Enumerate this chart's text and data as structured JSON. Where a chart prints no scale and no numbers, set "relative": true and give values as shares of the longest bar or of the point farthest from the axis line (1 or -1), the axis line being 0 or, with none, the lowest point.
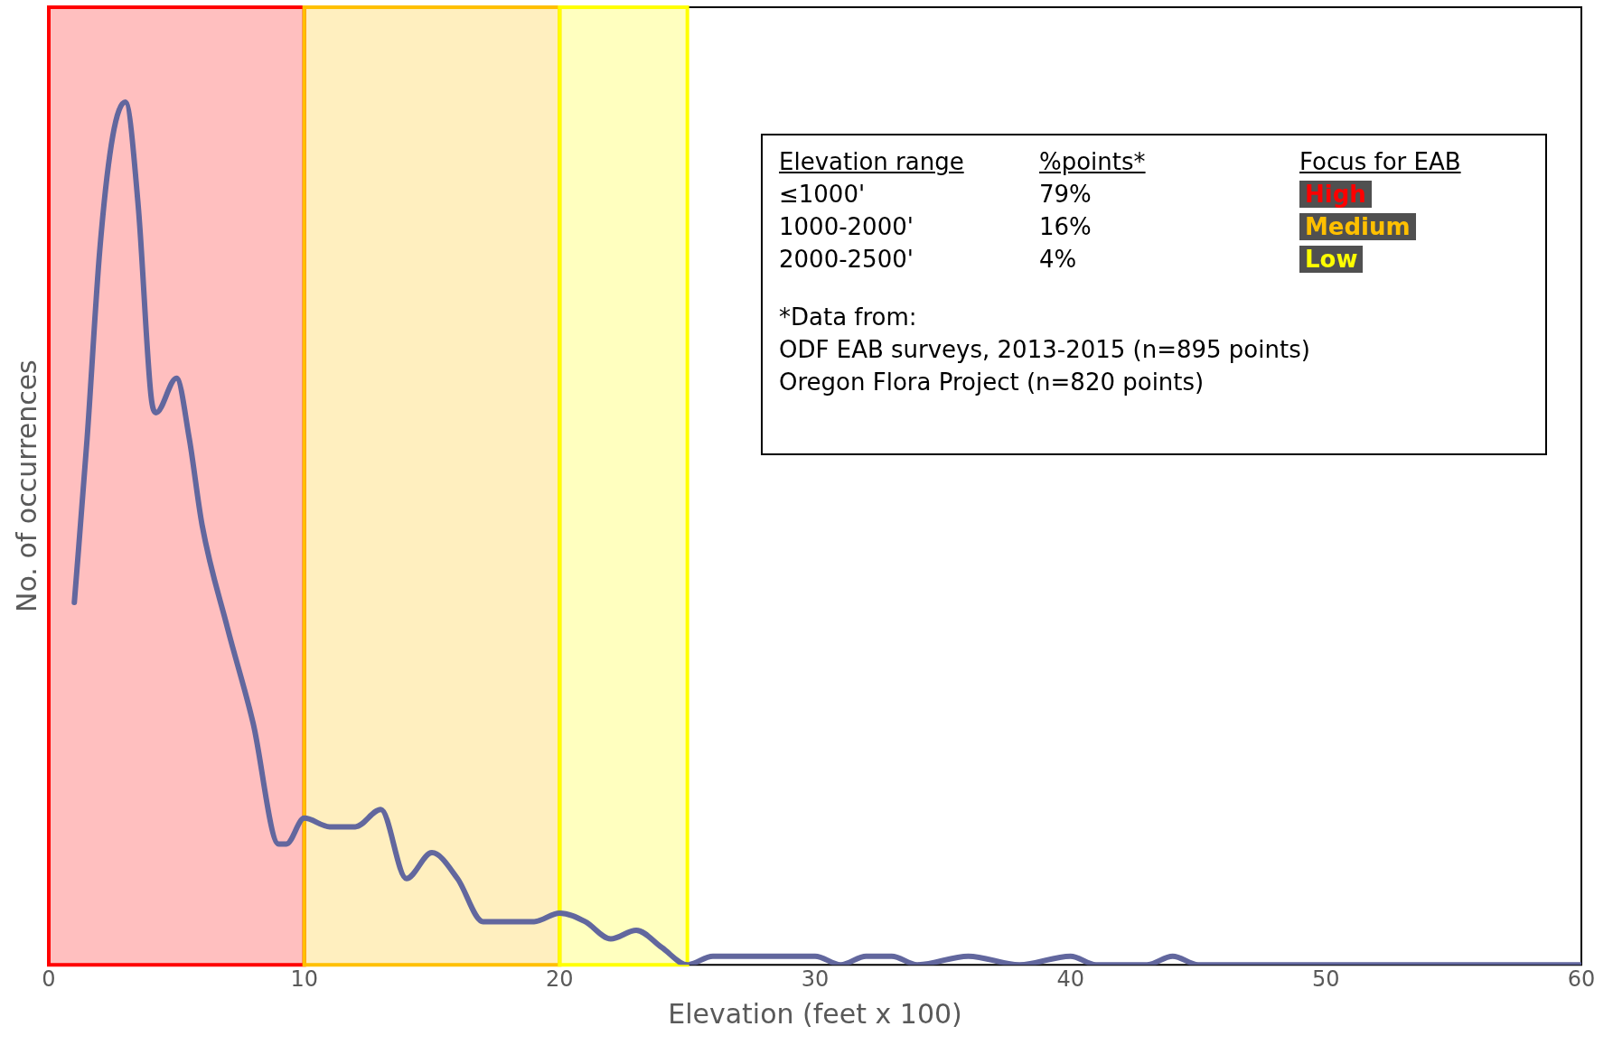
{
  "chart_data": {
    "type": "line",
    "xlabel": "Elevation (feet x 100)",
    "ylabel": "No. of occurrences",
    "relative": true,
    "xlim": [
      0,
      60
    ],
    "xticks": [
      0,
      10,
      20,
      30,
      40,
      50,
      60
    ],
    "grid": false,
    "legend": false,
    "marker": "none",
    "line_style": "solid",
    "series": [
      {
        "color": "#62679e",
        "x": [
          1,
          1.5,
          2,
          2.5,
          3,
          3.5,
          4,
          4.2,
          5,
          5.5,
          6,
          7,
          8,
          9,
          9.3,
          10,
          11,
          12,
          13,
          14,
          15,
          16,
          17,
          18,
          19,
          20,
          21,
          22,
          23,
          24,
          25,
          26,
          27,
          28,
          29,
          30,
          31,
          32,
          33,
          34,
          36,
          38,
          40,
          41,
          42,
          43,
          44,
          45,
          46,
          48,
          50,
          53,
          55,
          60
        ],
        "values": [
          0.42,
          0.61,
          0.83,
          0.96,
          1,
          0.88,
          0.66,
          0.64,
          0.68,
          0.61,
          0.51,
          0.39,
          0.28,
          0.14,
          0.14,
          0.17,
          0.16,
          0.16,
          0.18,
          0.1,
          0.13,
          0.1,
          0.05,
          0.05,
          0.05,
          0.06,
          0.05,
          0.03,
          0.04,
          0.02,
          0,
          0.01,
          0.01,
          0.01,
          0.01,
          0.01,
          0,
          0.01,
          0.01,
          0,
          0.01,
          0,
          0.01,
          0,
          0,
          0,
          0.01,
          0,
          0,
          0,
          0,
          0,
          0,
          0
        ]
      }
    ],
    "bands": [
      {
        "axis": "x",
        "from": 0,
        "to": 10,
        "color": "#ff0000"
      },
      {
        "axis": "x",
        "from": 10,
        "to": 20,
        "color": "#ffc000"
      },
      {
        "axis": "x",
        "from": 20,
        "to": 25,
        "color": "#ffff00"
      }
    ],
    "annotations": [
      "Elevation range",
      "%points*",
      "Focus for EAB",
      "≤1000'",
      "79%",
      "High",
      "1000-2000'",
      "16%",
      "Medium",
      "2000-2500'",
      "4%",
      "Low",
      "*Data from:",
      "ODF EAB surveys, 2013-2015 (n=895 points)",
      "Oregon Flora Project (n=820 points)"
    ]
  }
}
